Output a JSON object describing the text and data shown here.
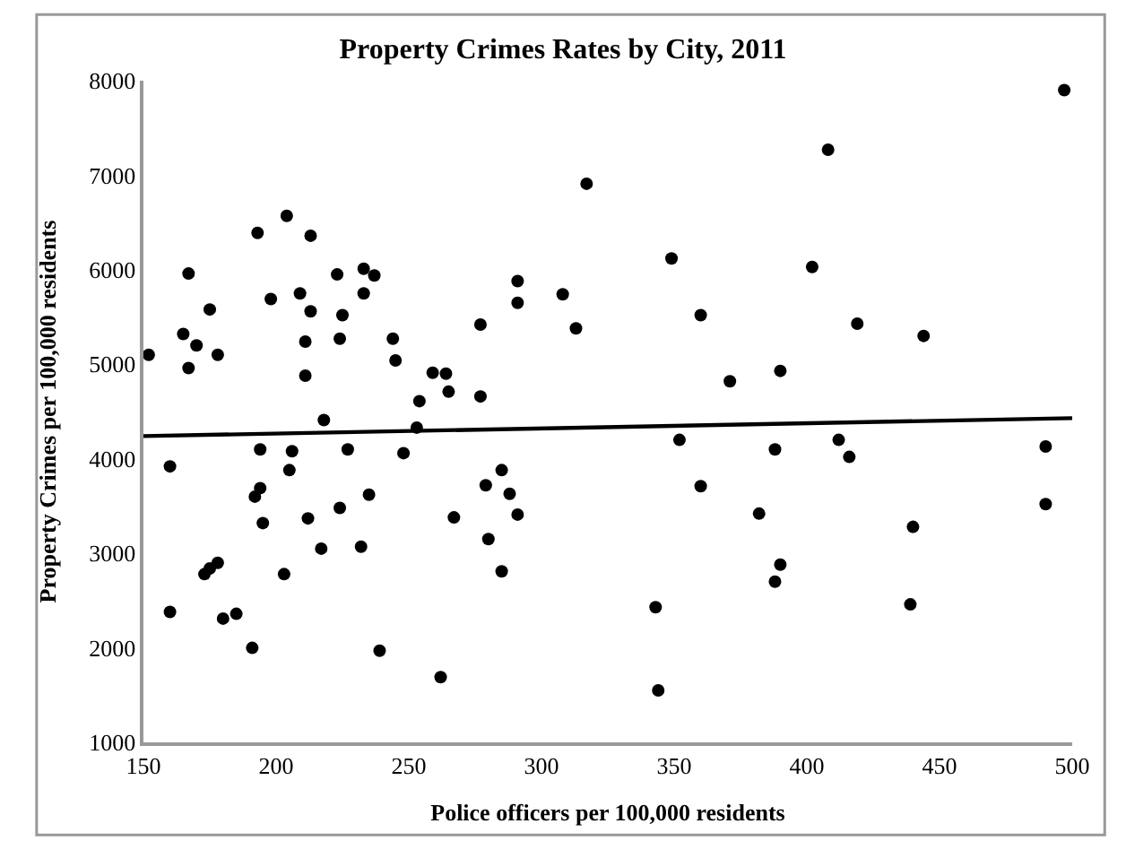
{
  "chart_data": {
    "type": "scatter",
    "title": "Property Crimes Rates by City, 2011",
    "xlabel": "Police officers per 100,000 residents",
    "ylabel": "Property Crimes per 100,000 residents",
    "xlim": [
      150,
      500
    ],
    "xticks": [
      150,
      200,
      250,
      300,
      350,
      400,
      450,
      500
    ],
    "ylim": [
      1000,
      8000
    ],
    "yticks": [
      1000,
      2000,
      3000,
      4000,
      5000,
      6000,
      7000,
      8000
    ],
    "series": [
      {
        "marker": "circle",
        "color": "#000000",
        "x": [
          193,
          204,
          213,
          223,
          233,
          237,
          198,
          209,
          213,
          225,
          233,
          211,
          224,
          244,
          245,
          211,
          259,
          264,
          265,
          254,
          218,
          253,
          194,
          206,
          205,
          227,
          248,
          194,
          192,
          195,
          212,
          224,
          235,
          267,
          217,
          232,
          203,
          185,
          191,
          239,
          262,
          408,
          317,
          349,
          402,
          291,
          291,
          308,
          277,
          313,
          360,
          419,
          371,
          390,
          277,
          352,
          360,
          388,
          412,
          416,
          382,
          390,
          388,
          343,
          344,
          279,
          285,
          288,
          291,
          280,
          285,
          440,
          439,
          444,
          490,
          490,
          497,
          152,
          160,
          160,
          165,
          167,
          167,
          170,
          175,
          173,
          175,
          178,
          178,
          180
        ],
        "values": [
          6390,
          6570,
          6360,
          5950,
          6010,
          5940,
          5690,
          5750,
          5560,
          5520,
          5750,
          5240,
          5270,
          5270,
          5040,
          4880,
          4910,
          4900,
          4710,
          4610,
          4410,
          4330,
          4100,
          4080,
          3880,
          4100,
          4060,
          3690,
          3600,
          3320,
          3370,
          3480,
          3620,
          3380,
          3050,
          3070,
          2780,
          2360,
          2000,
          1970,
          1690,
          7270,
          6910,
          6120,
          6030,
          5880,
          5650,
          5740,
          5420,
          5380,
          5520,
          5430,
          4820,
          4930,
          4660,
          4200,
          3710,
          4100,
          4200,
          4020,
          3420,
          2880,
          2700,
          2430,
          1550,
          3720,
          3880,
          3630,
          3410,
          3150,
          2810,
          3280,
          2460,
          5300,
          4130,
          3520,
          7900,
          5100,
          2380,
          3920,
          5320,
          4960,
          5960,
          5200,
          5580,
          2780,
          2840,
          2900,
          5100,
          2310
        ]
      },
      {
        "type": "line",
        "marker": "none",
        "line_style": "solid",
        "color": "#000000",
        "x": [
          150,
          500
        ],
        "values": [
          4240,
          4430
        ]
      }
    ]
  }
}
